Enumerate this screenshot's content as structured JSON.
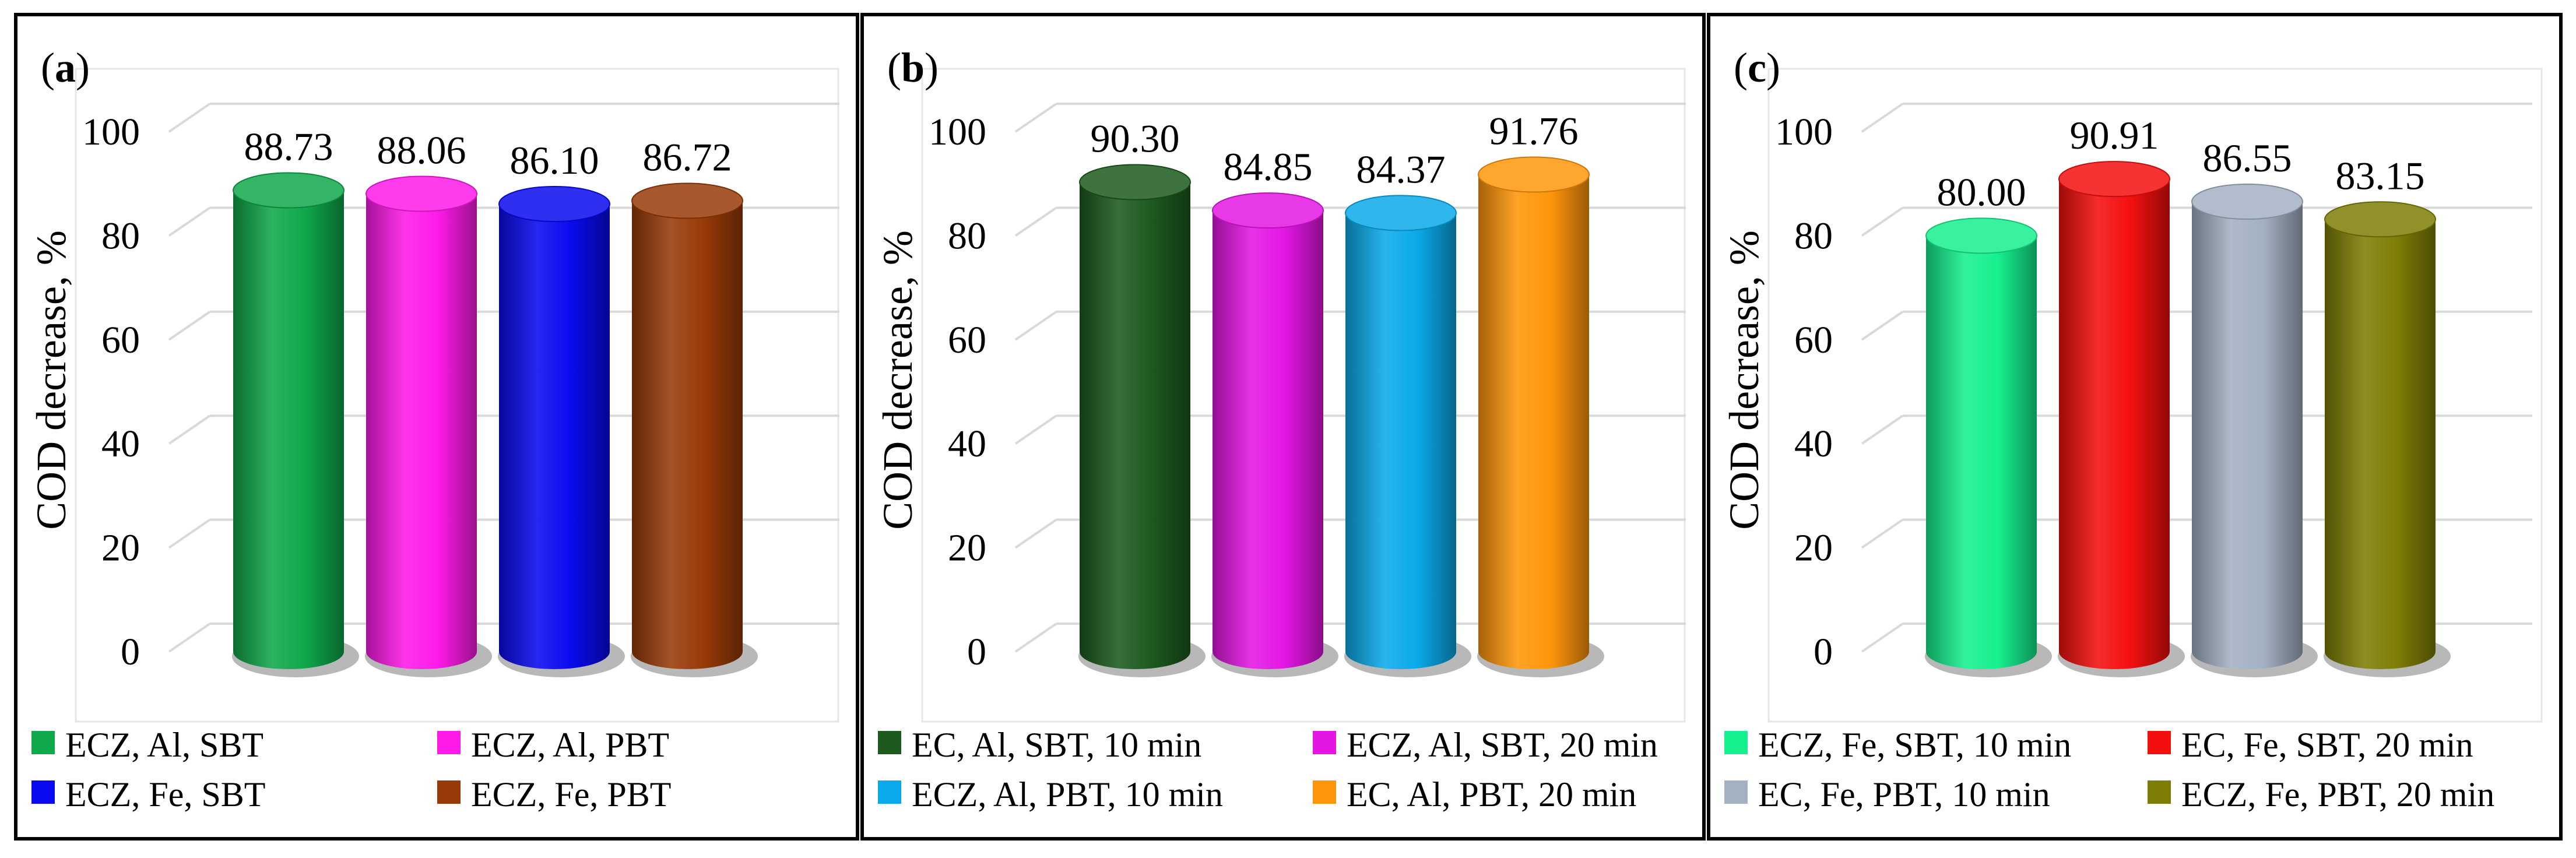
{
  "chart_data": [
    {
      "panel_label": "a",
      "type": "bar",
      "ylabel": "COD decrease, %",
      "ylim": [
        0,
        100
      ],
      "yticks": [
        0,
        20,
        40,
        60,
        80,
        100
      ],
      "grid": true,
      "legend_position": "bottom",
      "series": [
        {
          "name": "ECZ, Al, SBT",
          "value": 88.73,
          "label": "88.73",
          "color": "#0FA84A"
        },
        {
          "name": "ECZ, Al, PBT",
          "value": 88.06,
          "label": "88.06",
          "color": "#FF1AE8"
        },
        {
          "name": "ECZ, Fe, SBT",
          "value": 86.1,
          "label": "86.10",
          "color": "#0A0AF0"
        },
        {
          "name": "ECZ, Fe, PBT",
          "value": 86.72,
          "label": "86.72",
          "color": "#983A08"
        }
      ]
    },
    {
      "panel_label": "b",
      "type": "bar",
      "ylabel": "COD decrease, %",
      "ylim": [
        0,
        100
      ],
      "yticks": [
        0,
        20,
        40,
        60,
        80,
        100
      ],
      "grid": true,
      "legend_position": "bottom",
      "series": [
        {
          "name": "EC, Al, SBT, 10 min",
          "value": 90.3,
          "label": "90.30",
          "color": "#1C5A1E"
        },
        {
          "name": "ECZ, Al, SBT, 20 min",
          "value": 84.85,
          "label": "84.85",
          "color": "#E416E4"
        },
        {
          "name": "ECZ, Al, PBT, 10 min",
          "value": 84.37,
          "label": "84.37",
          "color": "#0AAAEA"
        },
        {
          "name": "EC, Al, PBT, 20 min",
          "value": 91.76,
          "label": "91.76",
          "color": "#FF960A"
        }
      ]
    },
    {
      "panel_label": "c",
      "type": "bar",
      "ylabel": "COD decrease, %",
      "ylim": [
        0,
        100
      ],
      "yticks": [
        0,
        20,
        40,
        60,
        80,
        100
      ],
      "grid": true,
      "legend_position": "bottom",
      "series": [
        {
          "name": "ECZ, Fe, SBT, 10 min",
          "value": 80.0,
          "label": "80.00",
          "color": "#16F08E"
        },
        {
          "name": "EC, Fe, SBT, 20 min",
          "value": 90.91,
          "label": "90.91",
          "color": "#F40F0F"
        },
        {
          "name": "EC, Fe, PBT, 10 min",
          "value": 86.55,
          "label": "86.55",
          "color": "#A3B1C3"
        },
        {
          "name": "ECZ, Fe, PBT, 20 min",
          "value": 83.15,
          "label": "83.15",
          "color": "#7E7E06"
        }
      ]
    }
  ]
}
